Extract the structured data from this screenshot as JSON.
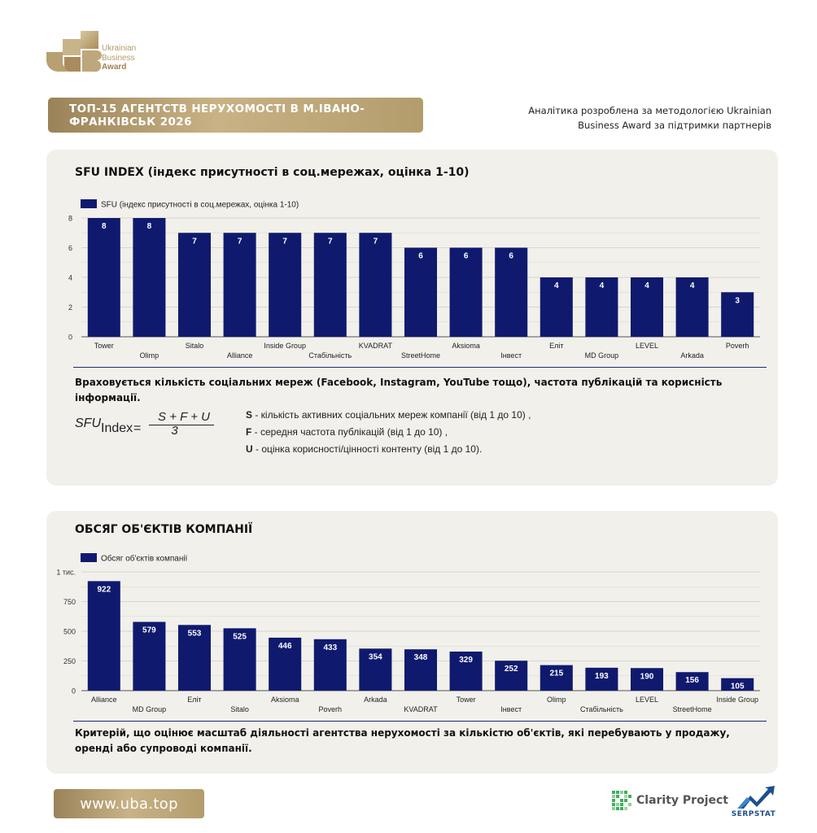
{
  "logo": {
    "line1": "Ukrainian",
    "line2": "Business",
    "line3": "Award"
  },
  "header": {
    "title": "ТОП-15 АГЕНТСТВ НЕРУХОМОСТІ В М.ІВАНО-ФРАНКІВСЬК 2026",
    "note": "Аналітика розроблена за методологією Ukrainian Business Award за підтримки партнерів"
  },
  "colors": {
    "bar": "#0f1a6e",
    "gold": "#b39c6c",
    "panel": "#f2f0eb"
  },
  "sfu": {
    "title": "SFU INDEX (індекс присутності в соц.мережах, оцінка 1-10)",
    "description": "Враховується кількість соціальних мереж (Facebook, Instagram, YouTube тощо), частота публікацій та корисність інформації.",
    "formula": {
      "lhs": "SFU",
      "lhs_sub": "Index",
      "eq": "=",
      "numerator": "S + F + U",
      "denominator": "3"
    },
    "definitions": [
      {
        "letter": "S",
        "text": " - кількість активних соціальних мереж компанії (від 1 до 10) ,"
      },
      {
        "letter": "F",
        "text": " - середня частота публікацій (від 1 до 10) ,"
      },
      {
        "letter": "U",
        "text": " - оцінка корисності/цінності контенту (від 1 до 10)."
      }
    ]
  },
  "volume": {
    "title": "ОБСЯГ ОБ'ЄКТІВ КОМПАНІЇ",
    "description": "Критерій, що оцінює масштаб діяльності агентства нерухомості за кількістю об'єктів, які перебувають у продажу, оренді або супроводі компанії."
  },
  "chart_data": [
    {
      "type": "bar",
      "legend": "SFU (індекс присутності в соц.мережах, оцінка 1-10)",
      "categories": [
        "Tower",
        "Olimp",
        "Sitalo",
        "Alliance",
        "Inside Group",
        "Стабільність",
        "KVADRAT",
        "StreetHome",
        "Aksioma",
        "Інвест",
        "Еліт",
        "MD Group",
        "LEVEL",
        "Arkada",
        "Poverh"
      ],
      "values": [
        8,
        8,
        7,
        7,
        7,
        7,
        7,
        6,
        6,
        6,
        4,
        4,
        4,
        4,
        3
      ],
      "ylim": [
        0,
        8
      ],
      "yticks": [
        0,
        2,
        4,
        6,
        8
      ],
      "ytick_labels": [
        "0",
        "2",
        "4",
        "6",
        "8"
      ],
      "grid": true,
      "legend_position": "top-left"
    },
    {
      "type": "bar",
      "legend": "Обсяг об'єктів компанії",
      "categories": [
        "Alliance",
        "MD Group",
        "Еліт",
        "Sitalo",
        "Aksioma",
        "Poverh",
        "Arkada",
        "KVADRAT",
        "Tower",
        "Інвест",
        "Olimp",
        "Стабільність",
        "LEVEL",
        "StreetHome",
        "Inside Group"
      ],
      "values": [
        922,
        579,
        553,
        525,
        446,
        433,
        354,
        348,
        329,
        252,
        215,
        193,
        190,
        156,
        105
      ],
      "ylim": [
        0,
        1000
      ],
      "yticks": [
        0,
        250,
        500,
        750,
        1000
      ],
      "ytick_labels": [
        "0",
        "250",
        "500",
        "750",
        "1 тис."
      ],
      "grid": true,
      "legend_position": "top-left"
    }
  ],
  "footer": {
    "url": "www.uba.top",
    "partner1": "Clarity Project",
    "partner2": "SERPSTAT"
  }
}
